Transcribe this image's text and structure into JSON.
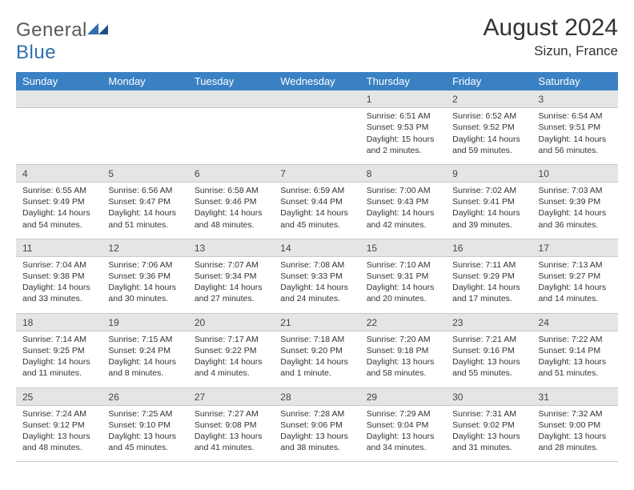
{
  "logo": {
    "general": "General",
    "blue": "Blue"
  },
  "title": "August 2024",
  "location": "Sizun, France",
  "colors": {
    "header_bg": "#3a81c4",
    "header_text": "#ffffff",
    "daynum_bg": "#e5e5e5",
    "border": "#c8c8c8",
    "text": "#333333",
    "logo_gray": "#5a5a5a",
    "logo_blue": "#2f6faf"
  },
  "day_headers": [
    "Sunday",
    "Monday",
    "Tuesday",
    "Wednesday",
    "Thursday",
    "Friday",
    "Saturday"
  ],
  "weeks": [
    [
      null,
      null,
      null,
      null,
      {
        "n": "1",
        "sr": "6:51 AM",
        "ss": "9:53 PM",
        "dl": "15 hours and 2 minutes."
      },
      {
        "n": "2",
        "sr": "6:52 AM",
        "ss": "9:52 PM",
        "dl": "14 hours and 59 minutes."
      },
      {
        "n": "3",
        "sr": "6:54 AM",
        "ss": "9:51 PM",
        "dl": "14 hours and 56 minutes."
      }
    ],
    [
      {
        "n": "4",
        "sr": "6:55 AM",
        "ss": "9:49 PM",
        "dl": "14 hours and 54 minutes."
      },
      {
        "n": "5",
        "sr": "6:56 AM",
        "ss": "9:47 PM",
        "dl": "14 hours and 51 minutes."
      },
      {
        "n": "6",
        "sr": "6:58 AM",
        "ss": "9:46 PM",
        "dl": "14 hours and 48 minutes."
      },
      {
        "n": "7",
        "sr": "6:59 AM",
        "ss": "9:44 PM",
        "dl": "14 hours and 45 minutes."
      },
      {
        "n": "8",
        "sr": "7:00 AM",
        "ss": "9:43 PM",
        "dl": "14 hours and 42 minutes."
      },
      {
        "n": "9",
        "sr": "7:02 AM",
        "ss": "9:41 PM",
        "dl": "14 hours and 39 minutes."
      },
      {
        "n": "10",
        "sr": "7:03 AM",
        "ss": "9:39 PM",
        "dl": "14 hours and 36 minutes."
      }
    ],
    [
      {
        "n": "11",
        "sr": "7:04 AM",
        "ss": "9:38 PM",
        "dl": "14 hours and 33 minutes."
      },
      {
        "n": "12",
        "sr": "7:06 AM",
        "ss": "9:36 PM",
        "dl": "14 hours and 30 minutes."
      },
      {
        "n": "13",
        "sr": "7:07 AM",
        "ss": "9:34 PM",
        "dl": "14 hours and 27 minutes."
      },
      {
        "n": "14",
        "sr": "7:08 AM",
        "ss": "9:33 PM",
        "dl": "14 hours and 24 minutes."
      },
      {
        "n": "15",
        "sr": "7:10 AM",
        "ss": "9:31 PM",
        "dl": "14 hours and 20 minutes."
      },
      {
        "n": "16",
        "sr": "7:11 AM",
        "ss": "9:29 PM",
        "dl": "14 hours and 17 minutes."
      },
      {
        "n": "17",
        "sr": "7:13 AM",
        "ss": "9:27 PM",
        "dl": "14 hours and 14 minutes."
      }
    ],
    [
      {
        "n": "18",
        "sr": "7:14 AM",
        "ss": "9:25 PM",
        "dl": "14 hours and 11 minutes."
      },
      {
        "n": "19",
        "sr": "7:15 AM",
        "ss": "9:24 PM",
        "dl": "14 hours and 8 minutes."
      },
      {
        "n": "20",
        "sr": "7:17 AM",
        "ss": "9:22 PM",
        "dl": "14 hours and 4 minutes."
      },
      {
        "n": "21",
        "sr": "7:18 AM",
        "ss": "9:20 PM",
        "dl": "14 hours and 1 minute."
      },
      {
        "n": "22",
        "sr": "7:20 AM",
        "ss": "9:18 PM",
        "dl": "13 hours and 58 minutes."
      },
      {
        "n": "23",
        "sr": "7:21 AM",
        "ss": "9:16 PM",
        "dl": "13 hours and 55 minutes."
      },
      {
        "n": "24",
        "sr": "7:22 AM",
        "ss": "9:14 PM",
        "dl": "13 hours and 51 minutes."
      }
    ],
    [
      {
        "n": "25",
        "sr": "7:24 AM",
        "ss": "9:12 PM",
        "dl": "13 hours and 48 minutes."
      },
      {
        "n": "26",
        "sr": "7:25 AM",
        "ss": "9:10 PM",
        "dl": "13 hours and 45 minutes."
      },
      {
        "n": "27",
        "sr": "7:27 AM",
        "ss": "9:08 PM",
        "dl": "13 hours and 41 minutes."
      },
      {
        "n": "28",
        "sr": "7:28 AM",
        "ss": "9:06 PM",
        "dl": "13 hours and 38 minutes."
      },
      {
        "n": "29",
        "sr": "7:29 AM",
        "ss": "9:04 PM",
        "dl": "13 hours and 34 minutes."
      },
      {
        "n": "30",
        "sr": "7:31 AM",
        "ss": "9:02 PM",
        "dl": "13 hours and 31 minutes."
      },
      {
        "n": "31",
        "sr": "7:32 AM",
        "ss": "9:00 PM",
        "dl": "13 hours and 28 minutes."
      }
    ]
  ],
  "labels": {
    "sunrise": "Sunrise: ",
    "sunset": "Sunset: ",
    "daylight": "Daylight: "
  }
}
